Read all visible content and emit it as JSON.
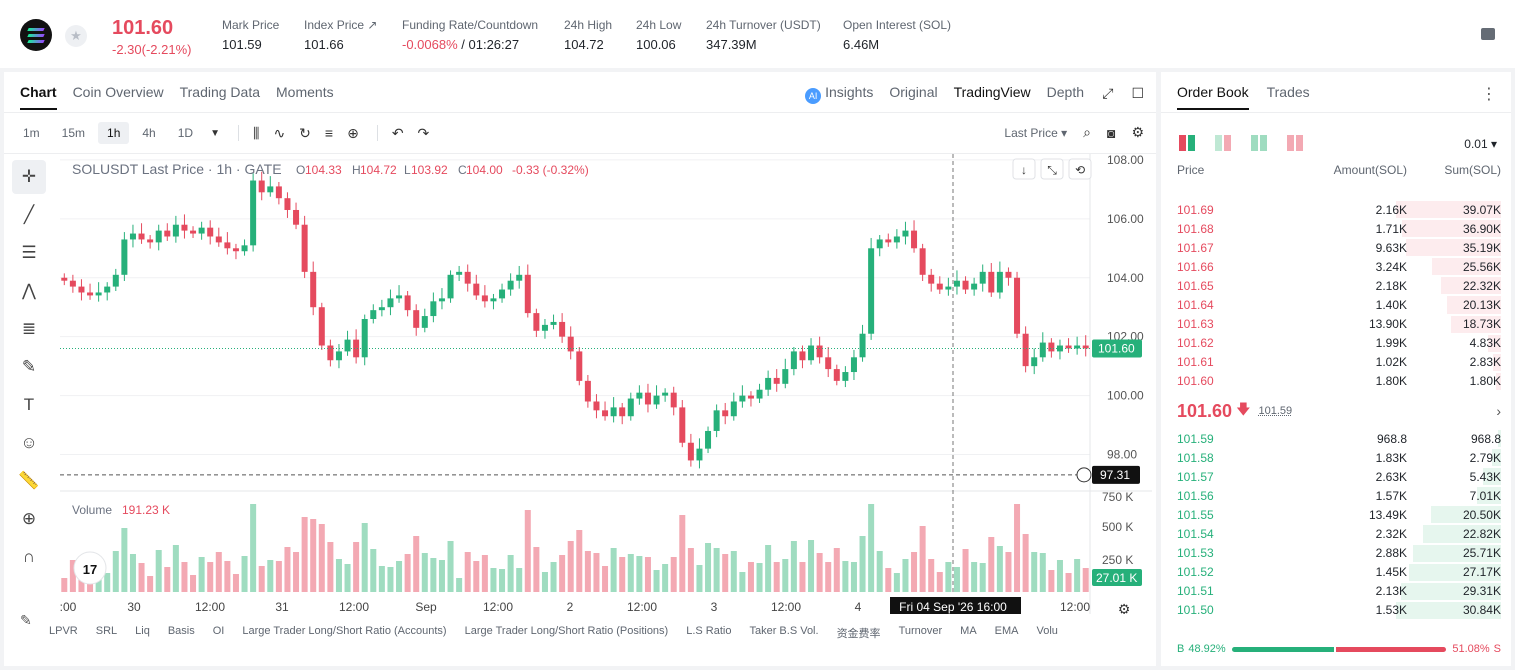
{
  "header": {
    "symbol_icon": "solana-logo",
    "last_price": "101.60",
    "change": "-2.30(-2.21%)",
    "stats": [
      {
        "label": "Mark Price",
        "value": "101.59"
      },
      {
        "label": "Index Price ↗",
        "value": "101.66"
      },
      {
        "label": "Funding Rate/Countdown",
        "value_neg": "-0.0068%",
        "value": " / 01:26:27"
      },
      {
        "label": "24h High",
        "value": "104.72"
      },
      {
        "label": "24h Low",
        "value": "100.06"
      },
      {
        "label": "24h Turnover (USDT)",
        "value": "347.39M"
      },
      {
        "label": "Open Interest (SOL)",
        "value": "6.46M"
      }
    ]
  },
  "chart_tabs": [
    "Chart",
    "Coin Overview",
    "Trading Data",
    "Moments"
  ],
  "chart_right_tabs": [
    "Insights",
    "Original",
    "TradingView",
    "Depth"
  ],
  "ai_badge": "AI",
  "timeframes": [
    "1m",
    "15m",
    "1h",
    "4h",
    "1D"
  ],
  "active_timeframe": "1h",
  "price_source": "Last Price",
  "legend": {
    "title": "SOLUSDT Last Price · 1h · GATE",
    "o_label": "O",
    "o": "104.33",
    "h_label": "H",
    "h": "104.72",
    "l_label": "L",
    "l": "103.92",
    "c_label": "C",
    "c": "104.00",
    "chg": "-0.33 (-0.32%)"
  },
  "volume_legend": {
    "label": "Volume",
    "value": "191.23 K"
  },
  "crosshair_date": "Fri 04 Sep '26   16:00",
  "chart_data": {
    "type": "candlestick",
    "y_ticks": [
      "108.00",
      "106.00",
      "104.00",
      "102.00",
      "100.00",
      "98.00"
    ],
    "ylim": [
      97.0,
      108.2
    ],
    "vol_ticks": [
      "750 K",
      "500 K",
      "250 K"
    ],
    "x_ticks": [
      ":00",
      "30",
      "12:00",
      "31",
      "12:00",
      "Sep",
      "12:00",
      "2",
      "12:00",
      "3",
      "12:00",
      "4",
      "12:00"
    ],
    "last_price_label": "101.60",
    "crosshair_price_label": "97.31",
    "last_volume_label": "27.01 K",
    "close_series": [
      103.9,
      103.7,
      103.5,
      103.4,
      103.5,
      103.7,
      104.1,
      105.3,
      105.5,
      105.3,
      105.2,
      105.6,
      105.4,
      105.8,
      105.6,
      105.5,
      105.7,
      105.4,
      105.2,
      105.0,
      104.9,
      105.1,
      107.3,
      106.9,
      107.1,
      106.7,
      106.3,
      105.8,
      104.2,
      103.0,
      101.7,
      101.2,
      101.5,
      101.9,
      101.3,
      102.6,
      102.9,
      103.0,
      103.3,
      103.4,
      102.9,
      102.3,
      102.7,
      103.2,
      103.3,
      104.1,
      104.2,
      103.8,
      103.4,
      103.2,
      103.3,
      103.6,
      103.9,
      104.1,
      102.8,
      102.2,
      102.4,
      102.5,
      102.0,
      101.5,
      100.5,
      99.8,
      99.5,
      99.3,
      99.6,
      99.3,
      99.9,
      100.1,
      99.7,
      100.0,
      100.1,
      99.6,
      98.4,
      97.8,
      98.2,
      98.8,
      99.5,
      99.3,
      99.8,
      100.0,
      99.9,
      100.2,
      100.6,
      100.4,
      100.9,
      101.5,
      101.2,
      101.7,
      101.3,
      100.9,
      100.5,
      100.8,
      101.3,
      102.1,
      105.0,
      105.3,
      105.2,
      105.4,
      105.6,
      105.0,
      104.1,
      103.8,
      103.6,
      103.7,
      103.9,
      103.6,
      103.8,
      104.2,
      103.5,
      104.2,
      104.0,
      102.1,
      101.0,
      101.3,
      101.8,
      101.5,
      101.7,
      101.6,
      101.7,
      101.6
    ],
    "open_series": [
      104.0,
      103.9,
      103.7,
      103.5,
      103.4,
      103.5,
      103.7,
      104.1,
      105.3,
      105.5,
      105.3,
      105.2,
      105.6,
      105.4,
      105.8,
      105.6,
      105.5,
      105.7,
      105.4,
      105.2,
      105.0,
      104.9,
      105.1,
      107.3,
      106.9,
      107.1,
      106.7,
      106.3,
      105.8,
      104.2,
      103.0,
      101.7,
      101.2,
      101.5,
      101.9,
      101.3,
      102.6,
      102.9,
      103.0,
      103.3,
      103.4,
      102.9,
      102.3,
      102.7,
      103.2,
      103.3,
      104.1,
      104.2,
      103.8,
      103.4,
      103.2,
      103.3,
      103.6,
      103.9,
      104.1,
      102.8,
      102.2,
      102.4,
      102.5,
      102.0,
      101.5,
      100.5,
      99.8,
      99.5,
      99.3,
      99.6,
      99.3,
      99.9,
      100.1,
      99.7,
      100.0,
      100.1,
      99.6,
      98.4,
      97.8,
      98.2,
      98.8,
      99.5,
      99.3,
      99.8,
      100.0,
      99.9,
      100.2,
      100.6,
      100.4,
      100.9,
      101.5,
      101.2,
      101.7,
      101.3,
      100.9,
      100.5,
      100.8,
      101.3,
      102.1,
      105.0,
      105.3,
      105.2,
      105.4,
      105.6,
      105.0,
      104.1,
      103.8,
      103.6,
      103.7,
      103.9,
      103.6,
      103.8,
      104.2,
      103.5,
      104.2,
      104.0,
      102.1,
      101.0,
      101.3,
      101.8,
      101.5,
      101.7,
      101.6,
      101.7
    ]
  },
  "indicators": [
    "LPVR",
    "SRL",
    "Liq",
    "Basis",
    "OI",
    "Large Trader Long/Short Ratio (Accounts)",
    "Large Trader Long/Short Ratio (Positions)",
    "L.S Ratio",
    "Taker B.S Vol.",
    "资金费率",
    "Turnover",
    "MA",
    "EMA",
    "Volu"
  ],
  "orderbook": {
    "tabs": [
      "Order Book",
      "Trades"
    ],
    "precision": "0.01",
    "headers": [
      "Price",
      "Amount(SOL)",
      "Sum(SOL)"
    ],
    "asks": [
      {
        "price": "101.69",
        "amount": "2.16K",
        "sum": "39.07K",
        "depth": 1.0
      },
      {
        "price": "101.68",
        "amount": "1.71K",
        "sum": "36.90K",
        "depth": 0.944
      },
      {
        "price": "101.67",
        "amount": "9.63K",
        "sum": "35.19K",
        "depth": 0.901
      },
      {
        "price": "101.66",
        "amount": "3.24K",
        "sum": "25.56K",
        "depth": 0.654
      },
      {
        "price": "101.65",
        "amount": "2.18K",
        "sum": "22.32K",
        "depth": 0.571
      },
      {
        "price": "101.64",
        "amount": "1.40K",
        "sum": "20.13K",
        "depth": 0.515
      },
      {
        "price": "101.63",
        "amount": "13.90K",
        "sum": "18.73K",
        "depth": 0.479
      },
      {
        "price": "101.62",
        "amount": "1.99K",
        "sum": "4.83K",
        "depth": 0.124
      },
      {
        "price": "101.61",
        "amount": "1.02K",
        "sum": "2.83K",
        "depth": 0.072
      },
      {
        "price": "101.60",
        "amount": "1.80K",
        "sum": "1.80K",
        "depth": 0.046
      }
    ],
    "mid_price": "101.60",
    "mid_arrow": "🡇",
    "mid_index": "101.59",
    "bids": [
      {
        "price": "101.59",
        "amount": "968.8",
        "sum": "968.8",
        "depth": 0.031
      },
      {
        "price": "101.58",
        "amount": "1.83K",
        "sum": "2.79K",
        "depth": 0.09
      },
      {
        "price": "101.57",
        "amount": "2.63K",
        "sum": "5.43K",
        "depth": 0.176
      },
      {
        "price": "101.56",
        "amount": "1.57K",
        "sum": "7.01K",
        "depth": 0.227
      },
      {
        "price": "101.55",
        "amount": "13.49K",
        "sum": "20.50K",
        "depth": 0.665
      },
      {
        "price": "101.54",
        "amount": "2.32K",
        "sum": "22.82K",
        "depth": 0.74
      },
      {
        "price": "101.53",
        "amount": "2.88K",
        "sum": "25.71K",
        "depth": 0.834
      },
      {
        "price": "101.52",
        "amount": "1.45K",
        "sum": "27.17K",
        "depth": 0.881
      },
      {
        "price": "101.51",
        "amount": "2.13K",
        "sum": "29.31K",
        "depth": 0.951
      },
      {
        "price": "101.50",
        "amount": "1.53K",
        "sum": "30.84K",
        "depth": 1.0
      }
    ],
    "buy_label": "B",
    "buy_pct": "48.92%",
    "sell_pct": "51.08%",
    "sell_label": "S",
    "buy_ratio": 0.4892
  },
  "colors": {
    "up": "#26b07a",
    "down": "#e54a5e",
    "up_vol": "#9fdcc0",
    "down_vol": "#f3a9b3"
  }
}
